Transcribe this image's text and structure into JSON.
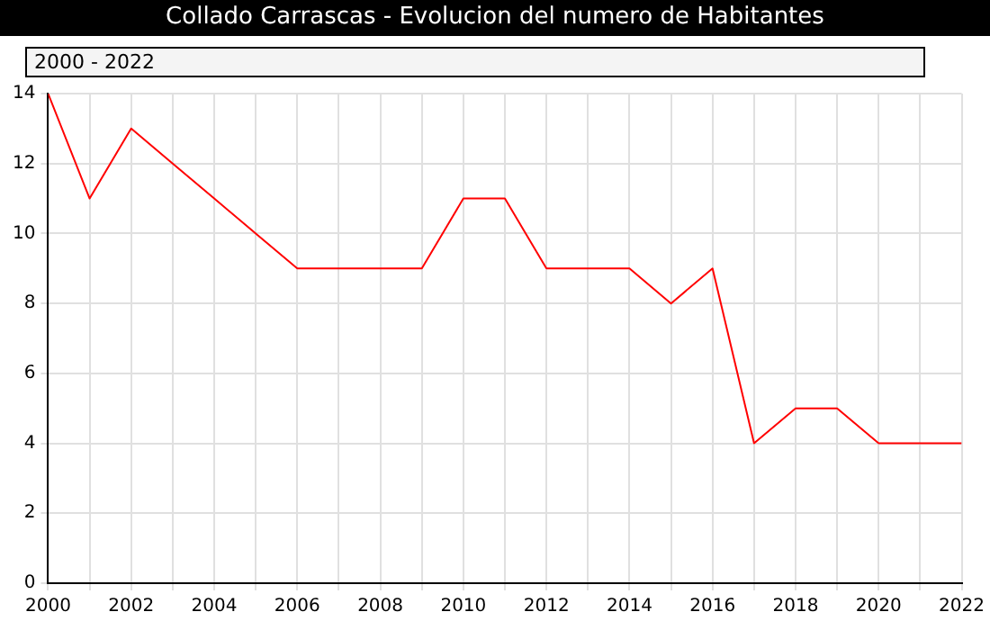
{
  "chart_data": {
    "type": "line",
    "title": "Collado Carrascas - Evolucion del numero de Habitantes",
    "subtitle": "2000 - 2022",
    "x": [
      2000,
      2001,
      2002,
      2003,
      2004,
      2005,
      2006,
      2007,
      2008,
      2009,
      2010,
      2011,
      2012,
      2013,
      2014,
      2015,
      2016,
      2017,
      2018,
      2019,
      2020,
      2021,
      2022
    ],
    "series": [
      {
        "color": "#ff0000",
        "values": [
          14,
          11,
          13,
          12,
          11,
          10,
          9,
          9,
          9,
          9,
          11,
          11,
          9,
          9,
          9,
          8,
          9,
          4,
          5,
          5,
          4,
          4,
          4
        ]
      }
    ],
    "xlim": [
      2000,
      2022
    ],
    "xticks": [
      2000,
      {
        "value": 2001,
        "label": null
      },
      2002,
      {
        "value": 2003,
        "label": null
      },
      2004,
      {
        "value": 2005,
        "label": null
      },
      2006,
      {
        "value": 2007,
        "label": null
      },
      2008,
      {
        "value": 2009,
        "label": null
      },
      2010,
      {
        "value": 2011,
        "label": null
      },
      2012,
      {
        "value": 2013,
        "label": null
      },
      2014,
      {
        "value": 2015,
        "label": null
      },
      2016,
      {
        "value": 2017,
        "label": null
      },
      2018,
      {
        "value": 2019,
        "label": null
      },
      2020,
      {
        "value": 2021,
        "label": null
      },
      2022
    ],
    "ylim": [
      0,
      14
    ],
    "yticks": [
      0,
      2,
      4,
      6,
      8,
      10,
      12,
      14
    ],
    "grid": true,
    "legend": false,
    "marker": "none",
    "line_style": "solid"
  }
}
